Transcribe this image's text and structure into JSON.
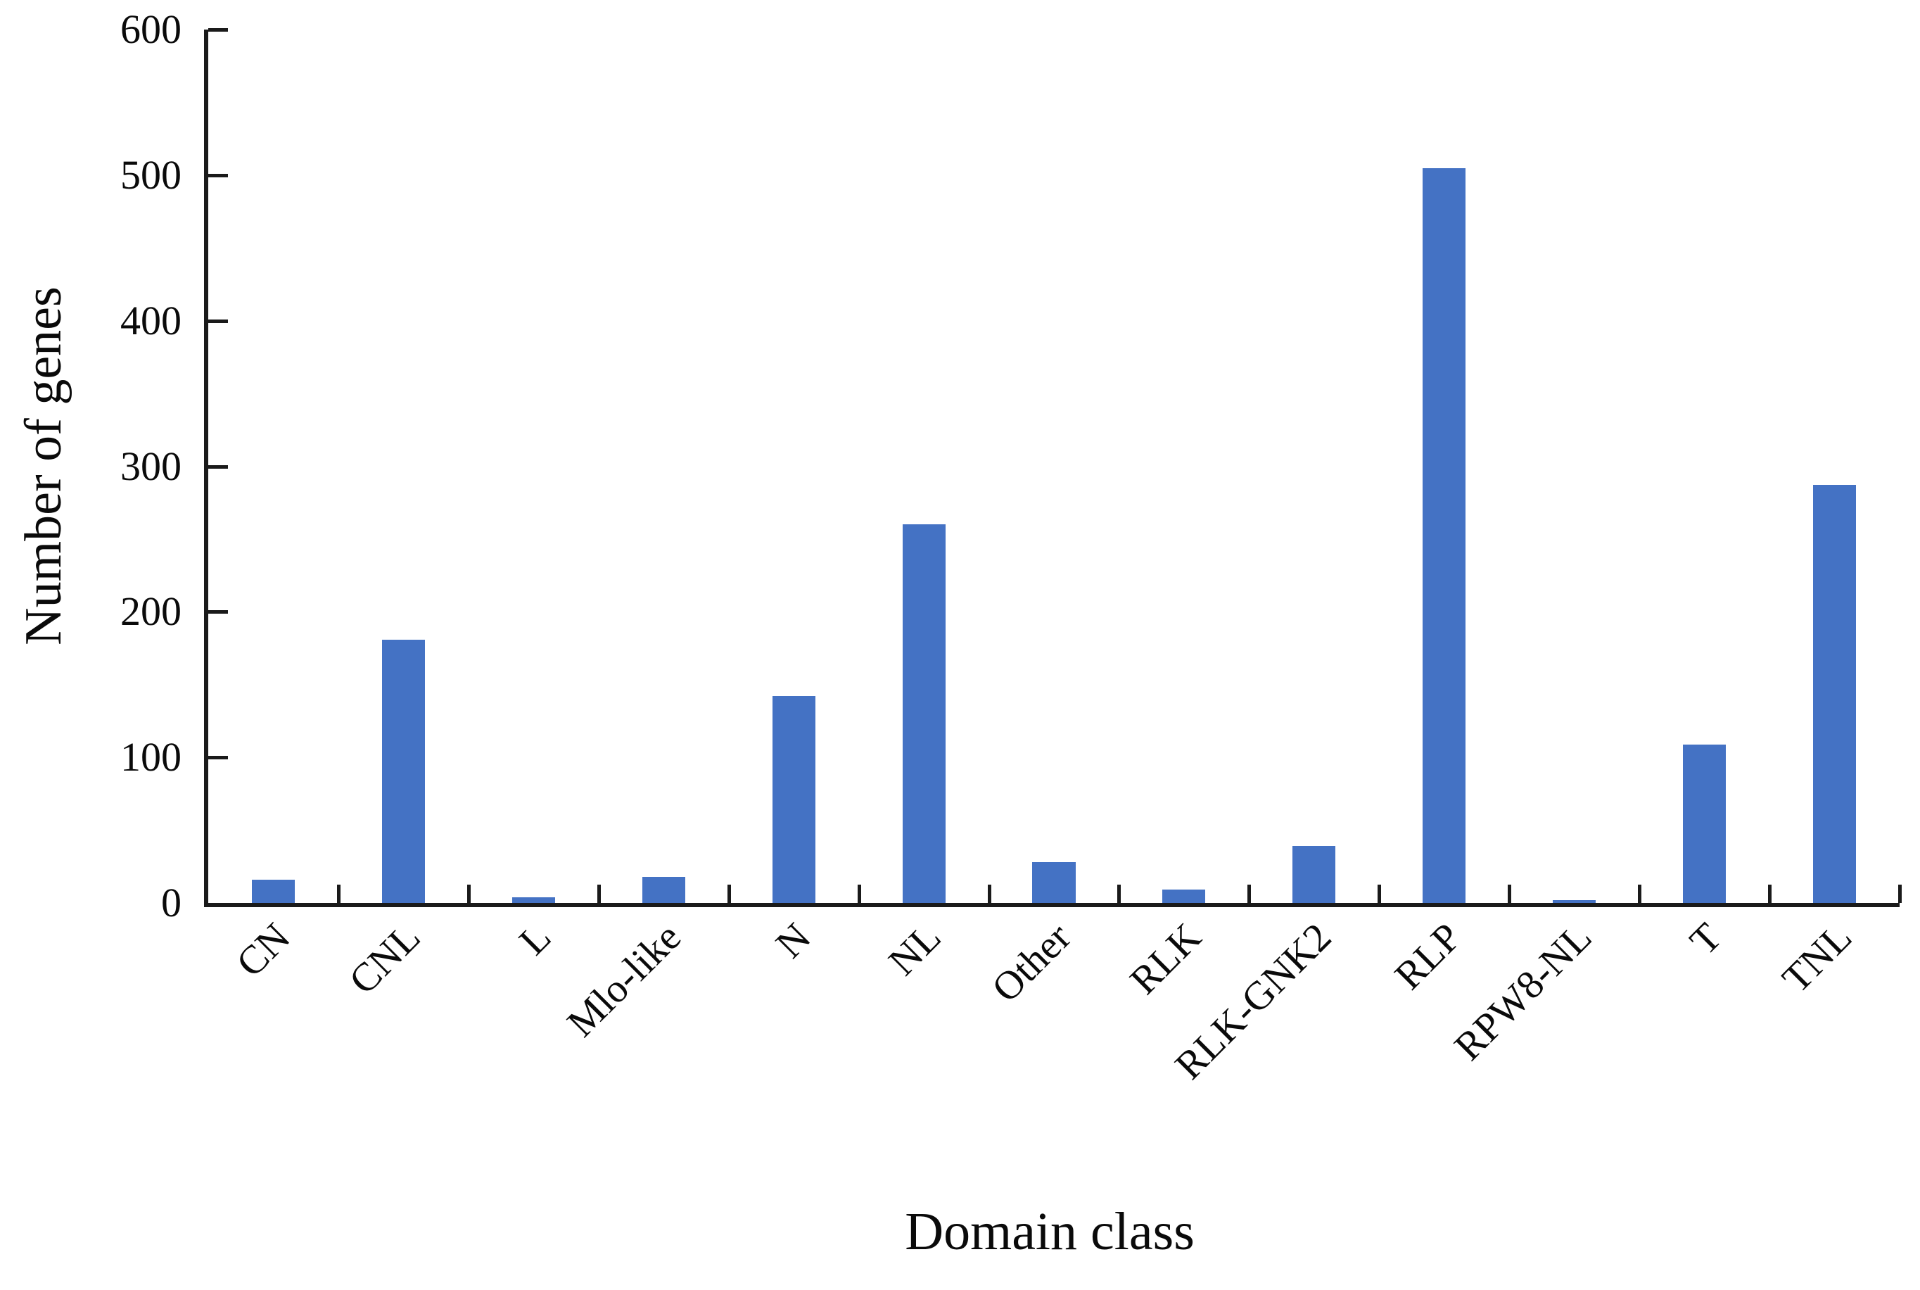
{
  "chart_data": {
    "type": "bar",
    "title": "",
    "xlabel": "Domain class",
    "ylabel": "Number of genes",
    "categories": [
      "CN",
      "CNL",
      "L",
      "Mlo-like",
      "N",
      "NL",
      "Other",
      "RLK",
      "RLK-GNK2",
      "RLP",
      "RPW8-NL",
      "T",
      "TNL"
    ],
    "values": [
      16,
      181,
      4,
      18,
      142,
      260,
      28,
      9,
      39,
      505,
      2,
      109,
      287
    ],
    "ylim": [
      0,
      600
    ],
    "ytick_interval": 100,
    "yticks": [
      "600",
      "500",
      "400",
      "300",
      "200",
      "100",
      "0"
    ],
    "bar_color": "#4472C4",
    "axis_color": "#1a1a1a",
    "grid": "off",
    "legend": "none",
    "x_tick_label_rotation_deg": 45
  }
}
